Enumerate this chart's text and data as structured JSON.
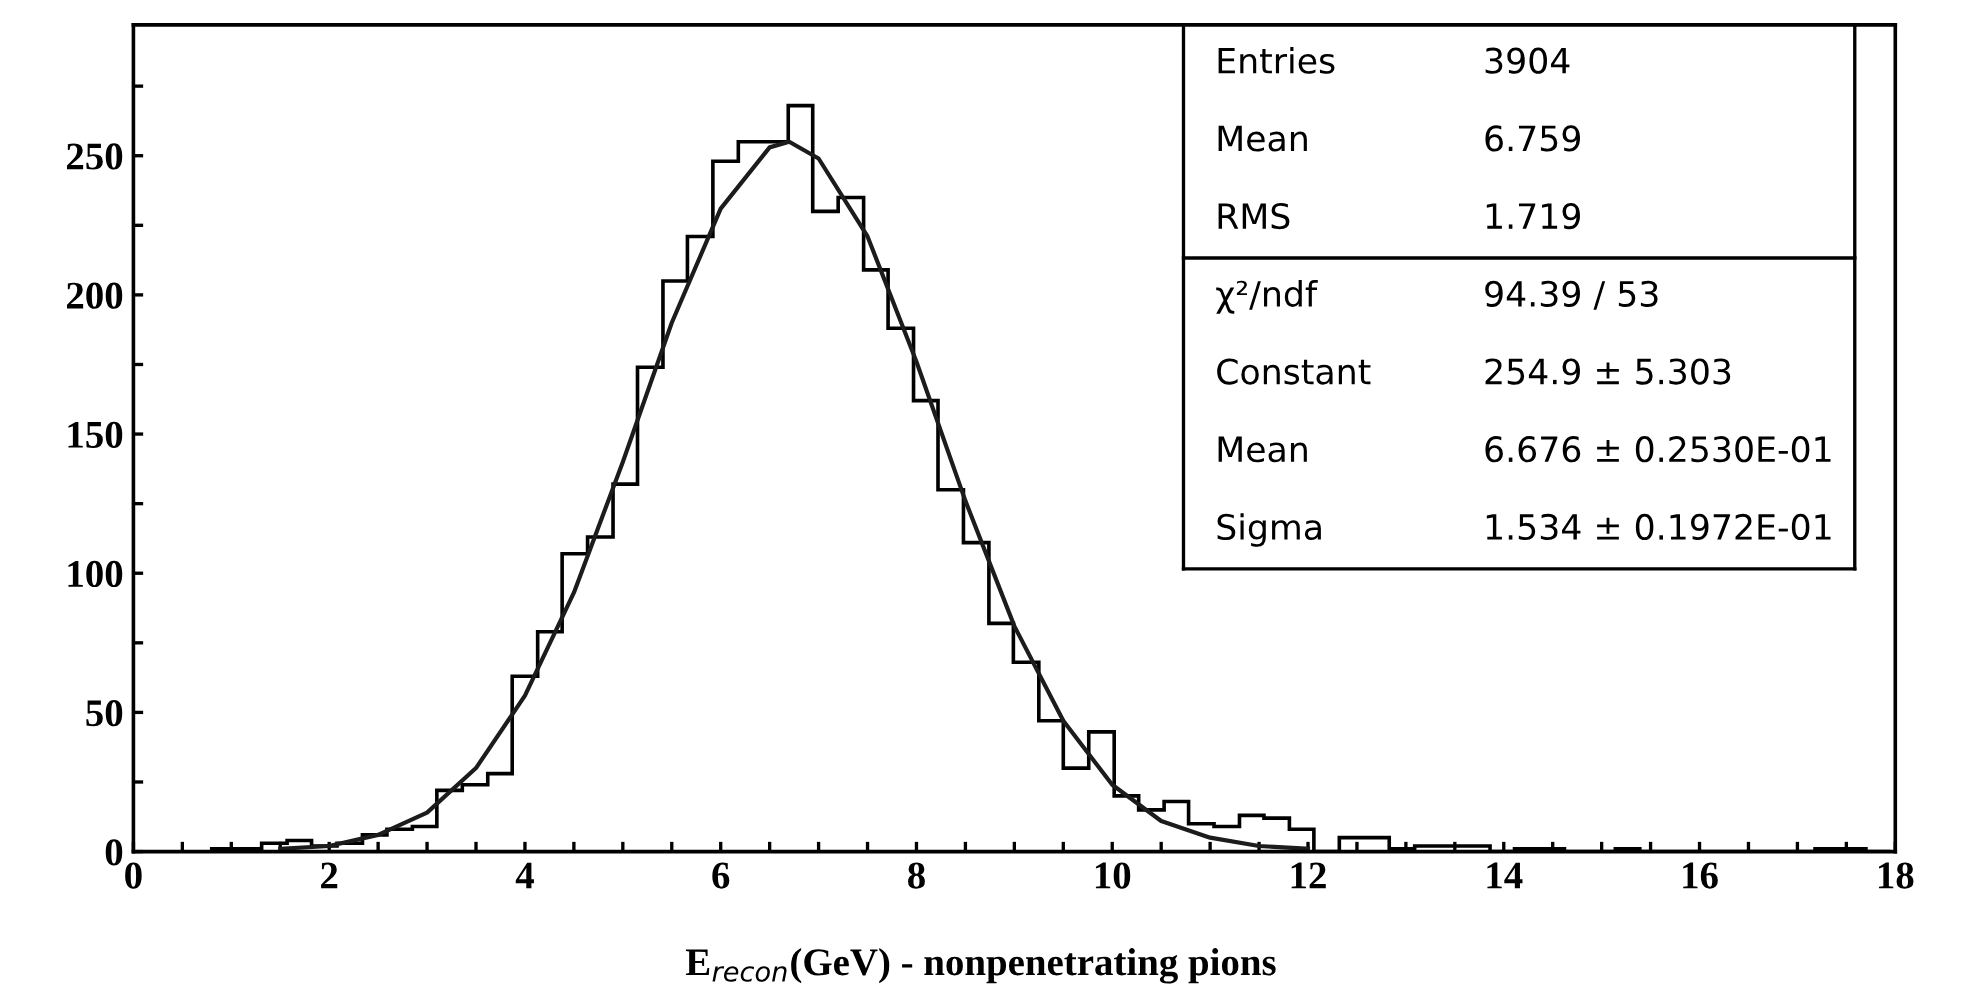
{
  "chart_data": {
    "type": "histogram",
    "xlabel": "E$_{recon}$(GeV) - nonpenetrating pions",
    "xlim": [
      0,
      18
    ],
    "ylim": [
      0,
      297
    ],
    "xticks": [
      0,
      {
        "value": 0.5,
        "label": null
      },
      {
        "value": 1,
        "label": null
      },
      {
        "value": 1.5,
        "label": null
      },
      2,
      {
        "value": 2.5,
        "label": null
      },
      {
        "value": 3,
        "label": null
      },
      {
        "value": 3.5,
        "label": null
      },
      4,
      {
        "value": 4.5,
        "label": null
      },
      {
        "value": 5,
        "label": null
      },
      {
        "value": 5.5,
        "label": null
      },
      6,
      {
        "value": 6.5,
        "label": null
      },
      {
        "value": 7,
        "label": null
      },
      {
        "value": 7.5,
        "label": null
      },
      8,
      {
        "value": 8.5,
        "label": null
      },
      {
        "value": 9,
        "label": null
      },
      {
        "value": 9.5,
        "label": null
      },
      10,
      {
        "value": 10.5,
        "label": null
      },
      {
        "value": 11,
        "label": null
      },
      {
        "value": 11.5,
        "label": null
      },
      12,
      {
        "value": 12.5,
        "label": null
      },
      {
        "value": 13,
        "label": null
      },
      {
        "value": 13.5,
        "label": null
      },
      14,
      {
        "value": 14.5,
        "label": null
      },
      {
        "value": 15,
        "label": null
      },
      {
        "value": 15.5,
        "label": null
      },
      16,
      {
        "value": 16.5,
        "label": null
      },
      {
        "value": 17,
        "label": null
      },
      {
        "value": 17.5,
        "label": null
      },
      18
    ],
    "yticks": [
      0,
      {
        "value": 25,
        "label": null
      },
      50,
      {
        "value": 75,
        "label": null
      },
      100,
      {
        "value": 125,
        "label": null
      },
      150,
      {
        "value": 175,
        "label": null
      },
      200,
      {
        "value": 225,
        "label": null
      },
      250,
      {
        "value": 275,
        "label": null
      }
    ],
    "bins": [
      0.8,
      1.06,
      1.31,
      1.57,
      1.82,
      2.08,
      2.34,
      2.59,
      2.85,
      3.1,
      3.36,
      3.62,
      3.87,
      4.13,
      4.38,
      4.64,
      4.9,
      5.15,
      5.41,
      5.66,
      5.92,
      6.18,
      6.43,
      6.69,
      6.94,
      7.2,
      7.46,
      7.71,
      7.97,
      8.22,
      8.48,
      8.74,
      8.99,
      9.25,
      9.5,
      9.76,
      10.02,
      10.27,
      10.53,
      10.78,
      11.04,
      11.3,
      11.55,
      11.81,
      12.06,
      12.32,
      12.58,
      12.83,
      13.09,
      13.34,
      13.6,
      13.86,
      14.11,
      14.37,
      14.62,
      14.88,
      15.14,
      15.39,
      15.65,
      15.9,
      16.16,
      16.42,
      16.67,
      16.93,
      17.18,
      17.44,
      17.7,
      17.95
    ],
    "values": [
      1,
      1,
      3,
      4,
      2,
      3,
      6,
      8,
      9,
      22,
      24,
      28,
      63,
      79,
      107,
      113,
      132,
      174,
      205,
      221,
      248,
      255,
      255,
      268,
      230,
      235,
      209,
      188,
      162,
      130,
      111,
      82,
      68,
      47,
      30,
      43,
      20,
      15,
      18,
      10,
      9,
      13,
      12,
      8,
      0,
      5,
      5,
      1,
      2,
      2,
      2,
      0,
      1,
      1,
      0,
      0,
      1,
      0,
      0,
      0,
      0,
      0,
      0,
      0,
      1,
      1,
      0
    ],
    "color": "#000000",
    "series": [
      {
        "type": "line",
        "color": "#1c1c1c",
        "x": [
          1.5,
          2.0,
          2.5,
          3.0,
          3.5,
          4.0,
          4.5,
          5.0,
          5.5,
          6.0,
          6.5,
          6.7,
          7.0,
          7.5,
          8.0,
          8.5,
          9.0,
          9.5,
          10.0,
          10.5,
          11.0,
          11.5,
          12.0
        ],
        "values": [
          1,
          2,
          6,
          14,
          30,
          56,
          93,
          140,
          190,
          231,
          253,
          255,
          249,
          221,
          176,
          126,
          81,
          47,
          24,
          11,
          5,
          2,
          1
        ]
      }
    ],
    "annotations": [
      "Entries 3904",
      "Mean 6.759",
      "RMS 1.719",
      "χ²/ndf 94.39 / 53",
      "Constant 254.9 ± 5.303",
      "Mean 6.676 ± 0.2530E-01",
      "Sigma 1.534 ± 0.1972E-01"
    ]
  }
}
